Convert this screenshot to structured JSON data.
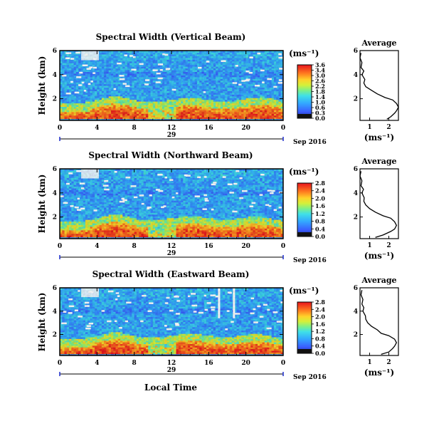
{
  "figure": {
    "xlabel": "Local Time",
    "date_label": "Sep 2016",
    "day_label": "29"
  },
  "chart_data": [
    {
      "type": "heatmap",
      "title": "Spectral Width (Vertical Beam)",
      "ylabel": "Height (km)",
      "x_ticks": [
        "0",
        "4",
        "8",
        "12",
        "16",
        "20",
        "0"
      ],
      "y_ticks": [
        "2",
        "4",
        "6"
      ],
      "xlim": [
        0,
        24
      ],
      "ylim": [
        0.2,
        6.0
      ],
      "colorbar": {
        "unit": "(ms⁻¹)",
        "ticks": [
          "3.6",
          "3.4",
          "3.0",
          "2.6",
          "2.2",
          "1.8",
          "1.4",
          "1.0",
          "0.6",
          "0.3",
          "0.0"
        ]
      },
      "profile": {
        "title": "Average",
        "unit": "(ms⁻¹)",
        "x_ticks": [
          "1",
          "2"
        ],
        "y_ticks": [
          "2",
          "4",
          "6"
        ],
        "xlim": [
          0.5,
          2.5
        ],
        "height": [
          0.3,
          0.5,
          0.8,
          1.0,
          1.3,
          1.6,
          1.9,
          2.1,
          2.4,
          2.7,
          3.0,
          3.3,
          3.6,
          4.0,
          4.3,
          4.6,
          5.0,
          5.4,
          5.8
        ],
        "width": [
          1.9,
          2.1,
          2.3,
          2.4,
          2.5,
          2.4,
          2.2,
          1.8,
          1.4,
          1.1,
          0.8,
          0.7,
          0.75,
          0.6,
          0.7,
          0.55,
          0.6,
          0.5,
          0.55
        ]
      }
    },
    {
      "type": "heatmap",
      "title": "Spectral Width (Northward Beam)",
      "ylabel": "Height (km)",
      "x_ticks": [
        "0",
        "4",
        "8",
        "12",
        "16",
        "20",
        "0"
      ],
      "y_ticks": [
        "2",
        "4",
        "6"
      ],
      "xlim": [
        0,
        24
      ],
      "ylim": [
        0.2,
        6.0
      ],
      "colorbar": {
        "unit": "(ms⁻¹)",
        "ticks": [
          "2.8",
          "2.4",
          "2.0",
          "1.6",
          "1.2",
          "0.8",
          "0.4",
          "0.0"
        ]
      },
      "profile": {
        "title": "Average",
        "unit": "(ms⁻¹)",
        "x_ticks": [
          "1",
          "2"
        ],
        "y_ticks": [
          "2",
          "4",
          "6"
        ],
        "xlim": [
          0.5,
          2.5
        ],
        "height": [
          0.3,
          0.5,
          0.8,
          1.0,
          1.3,
          1.6,
          1.9,
          2.1,
          2.4,
          2.7,
          3.0,
          3.3,
          3.6,
          4.0,
          4.3,
          4.6,
          5.0,
          5.4,
          5.8
        ],
        "width": [
          1.3,
          1.7,
          2.1,
          2.3,
          2.4,
          2.3,
          2.1,
          1.7,
          1.3,
          1.0,
          0.8,
          0.7,
          0.72,
          0.6,
          0.68,
          0.55,
          0.6,
          0.5,
          0.55
        ]
      }
    },
    {
      "type": "heatmap",
      "title": "Spectral Width (Eastward Beam)",
      "ylabel": "Height (km)",
      "x_ticks": [
        "0",
        "4",
        "8",
        "12",
        "16",
        "20",
        "0"
      ],
      "y_ticks": [
        "2",
        "4",
        "6"
      ],
      "xlim": [
        0,
        24
      ],
      "ylim": [
        0.2,
        6.0
      ],
      "colorbar": {
        "unit": "(ms⁻¹)",
        "ticks": [
          "2.8",
          "2.4",
          "2.0",
          "1.6",
          "1.2",
          "0.8",
          "0.4",
          "0.0"
        ]
      },
      "profile": {
        "title": "Average",
        "unit": "(ms⁻¹)",
        "x_ticks": [
          "1",
          "2"
        ],
        "y_ticks": [
          "2",
          "4",
          "6"
        ],
        "xlim": [
          0.5,
          2.5
        ],
        "height": [
          0.3,
          0.5,
          0.8,
          1.0,
          1.3,
          1.6,
          1.9,
          2.1,
          2.4,
          2.7,
          3.0,
          3.3,
          3.6,
          4.0,
          4.3,
          4.6,
          5.0,
          5.4,
          5.8
        ],
        "width": [
          1.6,
          2.0,
          2.2,
          2.3,
          2.4,
          2.3,
          2.0,
          1.6,
          1.4,
          1.1,
          0.9,
          0.8,
          0.78,
          0.65,
          0.7,
          0.6,
          0.65,
          0.55,
          0.6
        ]
      }
    }
  ]
}
